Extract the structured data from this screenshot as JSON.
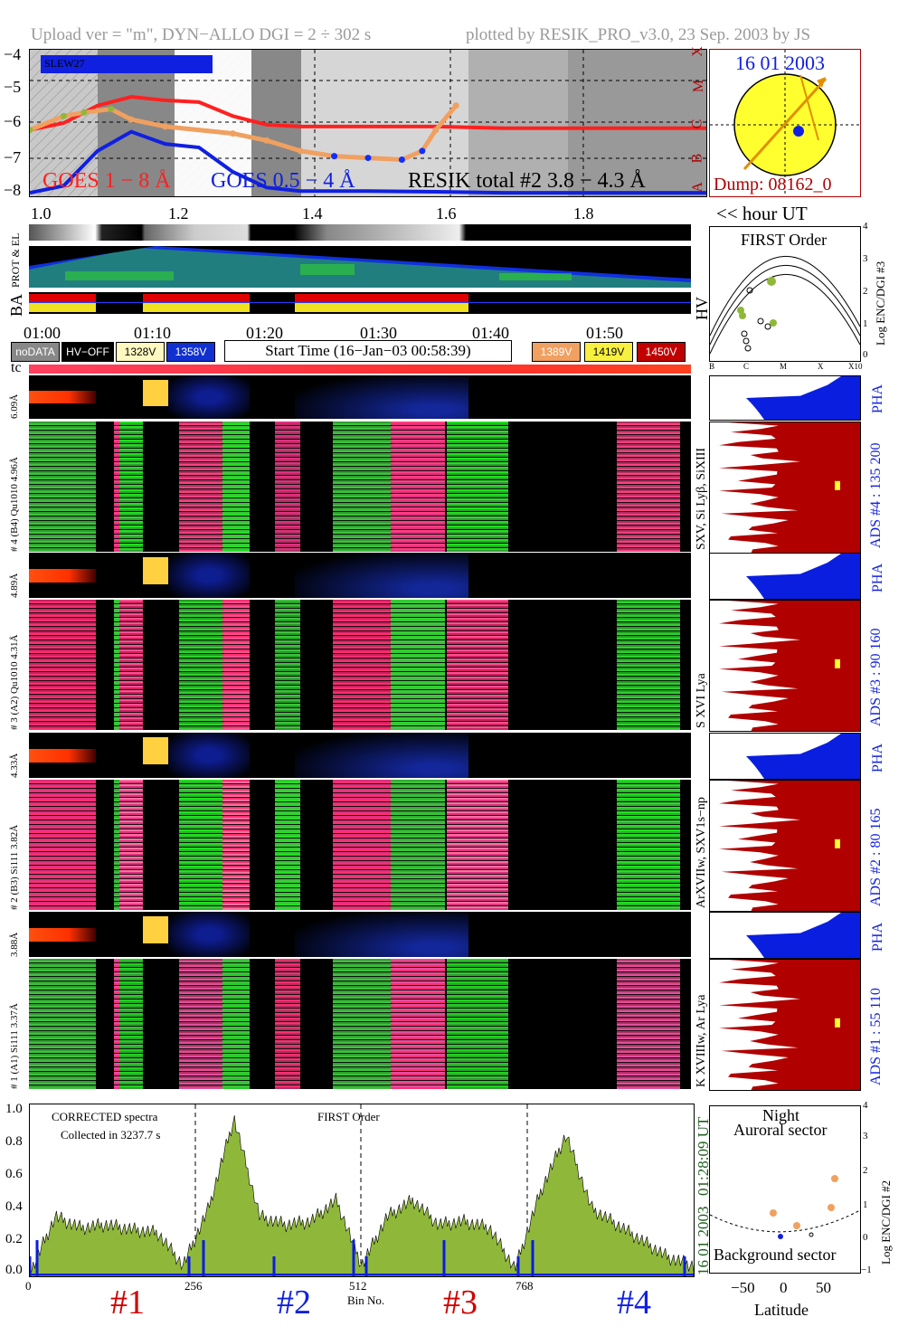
{
  "header": {
    "left": "Upload ver = \"m\", DYN−ALLO DGI =   2 ÷ 302 s",
    "right": "plotted by RESIK_PRO_v3.0, 23 Sep. 2003 by JS"
  },
  "goes_panel": {
    "label_slew": "SLEW27",
    "y_ticks": [
      "−4",
      "−5",
      "−6",
      "−7",
      "−8"
    ],
    "flare_classes": [
      "X",
      "M",
      "C",
      "B",
      "A"
    ],
    "legend_goes_long": "GOES 1 − 8 Å",
    "legend_goes_short": "GOES 0.5 − 4 Å",
    "legend_resik": "RESIK total #2  3.8 − 4.3 Å",
    "hour_ticks": [
      "1.0",
      "1.2",
      "1.4",
      "1.6",
      "1.8"
    ],
    "hour_axis_label": "<< hour UT"
  },
  "sun_panel": {
    "date": "16 01 2003",
    "dump": "Dump: 08162_0"
  },
  "strip_labels": {
    "prot": "PROT & EL",
    "ba": "BA",
    "hv": "HV"
  },
  "time_ticks": [
    "01:00",
    "01:10",
    "01:20",
    "01:30",
    "01:40",
    "01:50"
  ],
  "buttons": {
    "nodata": "noDATA",
    "hvoff": "HV−OFF",
    "v1328": "1328V",
    "v1358": "1358V",
    "start_time": "Start Time (16−Jan−03 00:58:39)",
    "v1389": "1389V",
    "v1419": "1419V",
    "v1450": "1450V"
  },
  "tc_label": "tc",
  "first_order_panel": {
    "title": "FIRST Order",
    "ylabel": "Log ENC/DGI #3",
    "y_ticks": [
      "4",
      "3",
      "2",
      "1",
      "0"
    ],
    "x_ticks": [
      "B",
      "C",
      "M",
      "X",
      "X10"
    ]
  },
  "channels": [
    {
      "pha_label": "6.09Å",
      "label": "# 4 (B4) Qu1010 4.96Å",
      "ions": "SXV, Si Lyβ, SiXIII",
      "ads": "ADS #4 :  135 200",
      "pha": "PHA"
    },
    {
      "pha_label": "4.89Å",
      "label": "# 3 (A2) Qu1010  4.31Å",
      "ions": "S XVI Lya",
      "ads": "ADS #3 :   90 160",
      "pha": "PHA"
    },
    {
      "pha_label": "4.33Å",
      "label": "# 2 (B3) Si111  3.82Å",
      "ions": "ArXVIIw, SXV1s−np",
      "ads": "ADS #2 :   80 165",
      "pha": "PHA"
    },
    {
      "pha_label": "3.88Å",
      "label": "# 1 (A1) Si111  3.37Å",
      "ions": "K XVIIIw, Ar Lya",
      "ads": "ADS #1 :   55 110",
      "pha": "PHA"
    }
  ],
  "spectrum_panel": {
    "note_line1": "CORRECTED spectra",
    "note_line2": "Collected in  3237.7 s",
    "note_order": "FIRST Order",
    "y_ticks": [
      "1.0",
      "0.8",
      "0.6",
      "0.4",
      "0.2",
      "0.0"
    ],
    "x_ticks": [
      "0",
      "256",
      "512",
      "768"
    ],
    "xlabel": "Bin No.",
    "right_date": "16 01 2003",
    "right_time": "01:28:09 UT",
    "channel_marks": [
      "#1",
      "#2",
      "#3",
      "#4"
    ]
  },
  "orbit_panel": {
    "night": "Night",
    "auroral": "Auroral sector",
    "background": "Background sector",
    "xlabel": "Latitude",
    "ylabel": "Log ENC/DGI #2",
    "x_ticks": [
      "−50",
      "0",
      "50"
    ],
    "y_ticks": [
      "4",
      "3",
      "2",
      "1",
      "0",
      "−1"
    ]
  },
  "colors": {
    "goes_long": "#ff2020",
    "goes_short": "#1020e0",
    "resik": "#f0a060",
    "green": "#8fb83a",
    "pha_blue": "#0a1ee0",
    "ads_red": "#b00000",
    "sun": "#ffff30"
  },
  "chart_data": [
    {
      "type": "line",
      "series": [
        {
          "name": "GOES 1 − 8 Å",
          "x": [
            1.0,
            1.05,
            1.1,
            1.15,
            1.2,
            1.25,
            1.3,
            1.35,
            1.4,
            1.5,
            1.6,
            1.7,
            1.8,
            1.9,
            2.0
          ],
          "y": [
            -6.2,
            -6.0,
            -5.5,
            -5.25,
            -5.35,
            -5.4,
            -5.8,
            -6.05,
            -6.1,
            -6.1,
            -6.1,
            -6.15,
            -6.15,
            -6.15,
            -6.15
          ]
        },
        {
          "name": "GOES 0.5 − 4 Å",
          "x": [
            1.0,
            1.05,
            1.1,
            1.15,
            1.2,
            1.25,
            1.3,
            1.35,
            1.4,
            1.5,
            1.6,
            1.7,
            1.8,
            1.9,
            2.0
          ],
          "y": [
            -8.0,
            -7.8,
            -6.8,
            -6.25,
            -6.6,
            -6.7,
            -7.4,
            -7.85,
            -7.95,
            -7.95,
            -7.97,
            -8.0,
            -8.0,
            -8.0,
            -8.0
          ]
        },
        {
          "name": "RESIK total #2  3.8 − 4.3 Å",
          "x": [
            1.0,
            1.05,
            1.08,
            1.12,
            1.15,
            1.2,
            1.3,
            1.35,
            1.4,
            1.45,
            1.5,
            1.55,
            1.58,
            1.6,
            1.63
          ],
          "y": [
            -6.2,
            -5.8,
            -5.7,
            -5.6,
            -5.9,
            -6.1,
            -6.3,
            -6.5,
            -6.8,
            -6.95,
            -7.0,
            -7.05,
            -6.8,
            -6.2,
            -5.5
          ]
        }
      ],
      "ylim": [
        -8.1,
        -3.9
      ],
      "xlim": [
        1.0,
        2.0
      ]
    },
    {
      "type": "area",
      "series": [
        {
          "name": "",
          "values": [
            0.0,
            0.35,
            0.28,
            0.3,
            0.27,
            0.25,
            0.05,
            0.4,
            0.95,
            0.35,
            0.3,
            0.32,
            0.45,
            0.05,
            0.35,
            0.45,
            0.3,
            0.32,
            0.28,
            0.03,
            0.5,
            0.85,
            0.4,
            0.3,
            0.2,
            0.1,
            0.05
          ]
        }
      ],
      "xlim": [
        0,
        1024
      ],
      "ylim": [
        0,
        1.05
      ]
    }
  ]
}
